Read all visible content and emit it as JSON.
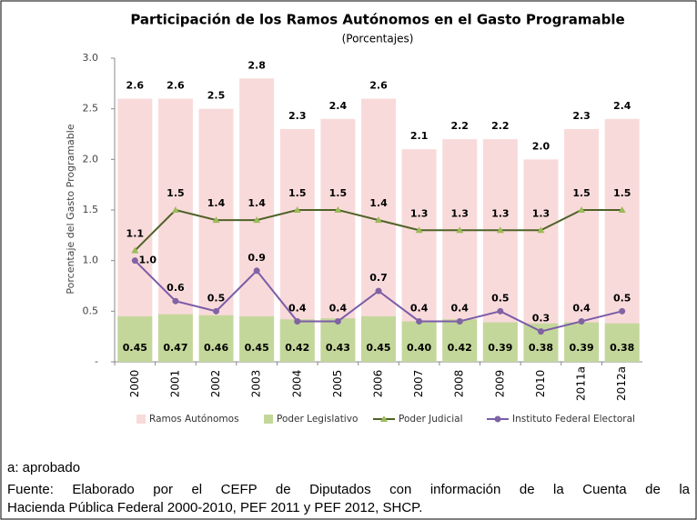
{
  "chart_data": {
    "type": "bar",
    "title": "Participación de los Ramos Autónomos en el Gasto Programable",
    "subtitle": "(Porcentajes)",
    "y_label": "Porcentaje del Gasto Programable",
    "categories": [
      "2000",
      "2001",
      "2002",
      "2003",
      "2004",
      "2005",
      "2006",
      "2007",
      "2008",
      "2009",
      "2010",
      "2011a",
      "2012a"
    ],
    "ylim": [
      0,
      3
    ],
    "yticks": [
      {
        "value": 0,
        "label": "-"
      },
      0.5,
      {
        "value": 1,
        "label": "1.0"
      },
      1.5,
      {
        "value": 2,
        "label": "2.0"
      },
      2.5,
      {
        "value": 3,
        "label": "3.0"
      }
    ],
    "series": [
      {
        "name": "Ramos Autónomos",
        "type": "bar",
        "color": "#f9dada",
        "values": [
          2.6,
          2.6,
          2.5,
          2.8,
          2.3,
          2.4,
          2.6,
          2.1,
          2.2,
          2.2,
          2.0,
          2.3,
          2.4
        ],
        "value_labels": [
          "2.6",
          "2.6",
          "2.5",
          "2.8",
          "2.3",
          "2.4",
          "2.6",
          "2.1",
          "2.2",
          "2.2",
          "2.0",
          "2.3",
          "2.4"
        ]
      },
      {
        "name": "Poder Legislativo",
        "type": "bar",
        "color": "#c4d79b",
        "values": [
          0.45,
          0.47,
          0.46,
          0.45,
          0.42,
          0.43,
          0.45,
          0.4,
          0.42,
          0.39,
          0.38,
          0.39,
          0.38
        ],
        "value_labels": [
          "0.45",
          "0.47",
          "0.46",
          "0.45",
          "0.42",
          "0.43",
          "0.45",
          "0.40",
          "0.42",
          "0.39",
          "0.38",
          "0.39",
          "0.38"
        ]
      },
      {
        "name": "Poder Judicial",
        "type": "line",
        "color": "#4f6228",
        "marker_color": "#9bbb59",
        "values": [
          1.1,
          1.5,
          1.4,
          1.4,
          1.5,
          1.5,
          1.4,
          1.3,
          1.3,
          1.3,
          1.3,
          1.5,
          1.5
        ],
        "value_labels": [
          "1.1",
          "1.5",
          "1.4",
          "1.4",
          "1.5",
          "1.5",
          "1.4",
          "1.3",
          "1.3",
          "1.3",
          "1.3",
          "1.5",
          "1.5"
        ]
      },
      {
        "name": "Instituto Federal Electoral",
        "type": "line",
        "color": "#7b5ca8",
        "marker_color": "#8064a2",
        "values": [
          1.0,
          0.6,
          0.5,
          0.9,
          0.4,
          0.4,
          0.7,
          0.4,
          0.4,
          0.5,
          0.3,
          0.4,
          0.5
        ],
        "value_labels": [
          "1.0",
          "0.6",
          "0.5",
          "0.9",
          "0.4",
          "0.4",
          "0.7",
          "0.4",
          "0.4",
          "0.5",
          "0.3",
          "0.4",
          "0.5"
        ]
      }
    ]
  },
  "notes": [
    "a: aprobado",
    "Fuente: Elaborado por el CEFP de Diputados con información de la Cuenta de la",
    "Hacienda Pública Federal 2000-2010, PEF 2011 y PEF 2012, SHCP."
  ]
}
